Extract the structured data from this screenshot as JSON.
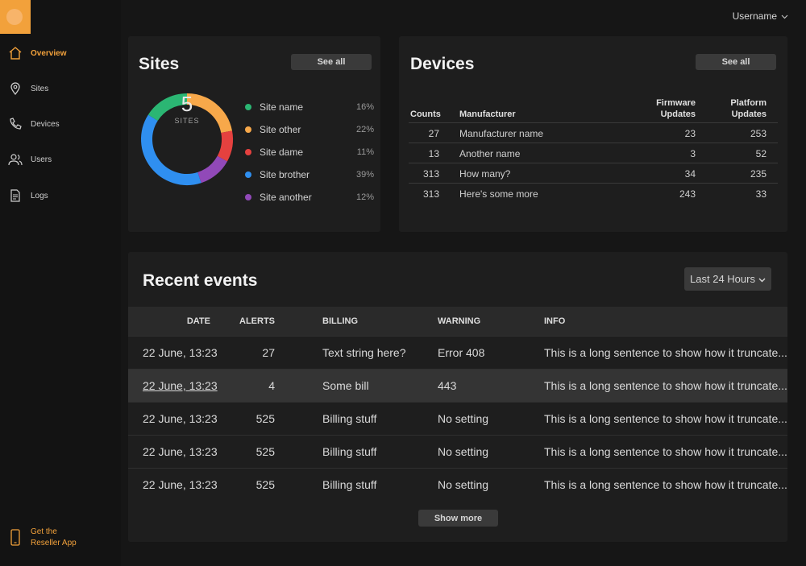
{
  "header": {
    "username": "Username"
  },
  "sidebar": {
    "items": [
      {
        "label": "Overview",
        "icon": "home-icon",
        "active": true
      },
      {
        "label": "Sites",
        "icon": "location-pin-icon",
        "active": false
      },
      {
        "label": "Devices",
        "icon": "phone-icon",
        "active": false
      },
      {
        "label": "Users",
        "icon": "users-icon",
        "active": false
      },
      {
        "label": "Logs",
        "icon": "document-icon",
        "active": false
      }
    ],
    "reseller_line1": "Get the",
    "reseller_line2": "Reseller App"
  },
  "sites": {
    "title": "Sites",
    "see_all": "See all",
    "count": "5",
    "count_label": "SITES",
    "legend": [
      {
        "name": "Site name",
        "pct": "16%",
        "value": 16,
        "color": "#2bb673"
      },
      {
        "name": "Site other",
        "pct": "22%",
        "value": 22,
        "color": "#f7a84a"
      },
      {
        "name": "Site dame",
        "pct": "11%",
        "value": 11,
        "color": "#e5413f"
      },
      {
        "name": "Site brother",
        "pct": "39%",
        "value": 39,
        "color": "#2f8ff0"
      },
      {
        "name": "Site another",
        "pct": "12%",
        "value": 12,
        "color": "#9149b8"
      }
    ]
  },
  "devices": {
    "title": "Devices",
    "see_all": "See all",
    "headers": {
      "counts": "Counts",
      "manufacturer": "Manufacturer",
      "fw1": "Firmware",
      "fw2": "Updates",
      "pl1": "Platform",
      "pl2": "Updates"
    },
    "rows": [
      {
        "count": "27",
        "manufacturer": "Manufacturer name",
        "firmware": "23",
        "platform": "253"
      },
      {
        "count": "13",
        "manufacturer": "Another name",
        "firmware": "3",
        "platform": "52"
      },
      {
        "count": "313",
        "manufacturer": "How many?",
        "firmware": "34",
        "platform": "235"
      },
      {
        "count": "313",
        "manufacturer": "Here's some more",
        "firmware": "243",
        "platform": "33"
      }
    ]
  },
  "events": {
    "title": "Recent events",
    "range": "Last 24 Hours",
    "headers": {
      "date": "DATE",
      "alerts": "ALERTS",
      "billing": "BILLING",
      "warning": "WARNING",
      "info": "INFO"
    },
    "rows": [
      {
        "date": "22 June, 13:23",
        "alerts": "27",
        "billing": "Text string here?",
        "warning": "Error 408",
        "info": "This is a long sentence to show how it truncate..."
      },
      {
        "date": "22 June, 13:23",
        "alerts": "4",
        "billing": "Some bill",
        "warning": "443",
        "info": "This is a long sentence to show how it truncate..."
      },
      {
        "date": "22 June, 13:23",
        "alerts": "525",
        "billing": "Billing stuff",
        "warning": "No setting",
        "info": "This is a long sentence to show how it truncate..."
      },
      {
        "date": "22 June, 13:23",
        "alerts": "525",
        "billing": "Billing stuff",
        "warning": "No setting",
        "info": "This is a long sentence to show how it truncate..."
      },
      {
        "date": "22 June, 13:23",
        "alerts": "525",
        "billing": "Billing stuff",
        "warning": "No setting",
        "info": "This is a long sentence to show how it truncate..."
      }
    ],
    "show_more": "Show more"
  }
}
